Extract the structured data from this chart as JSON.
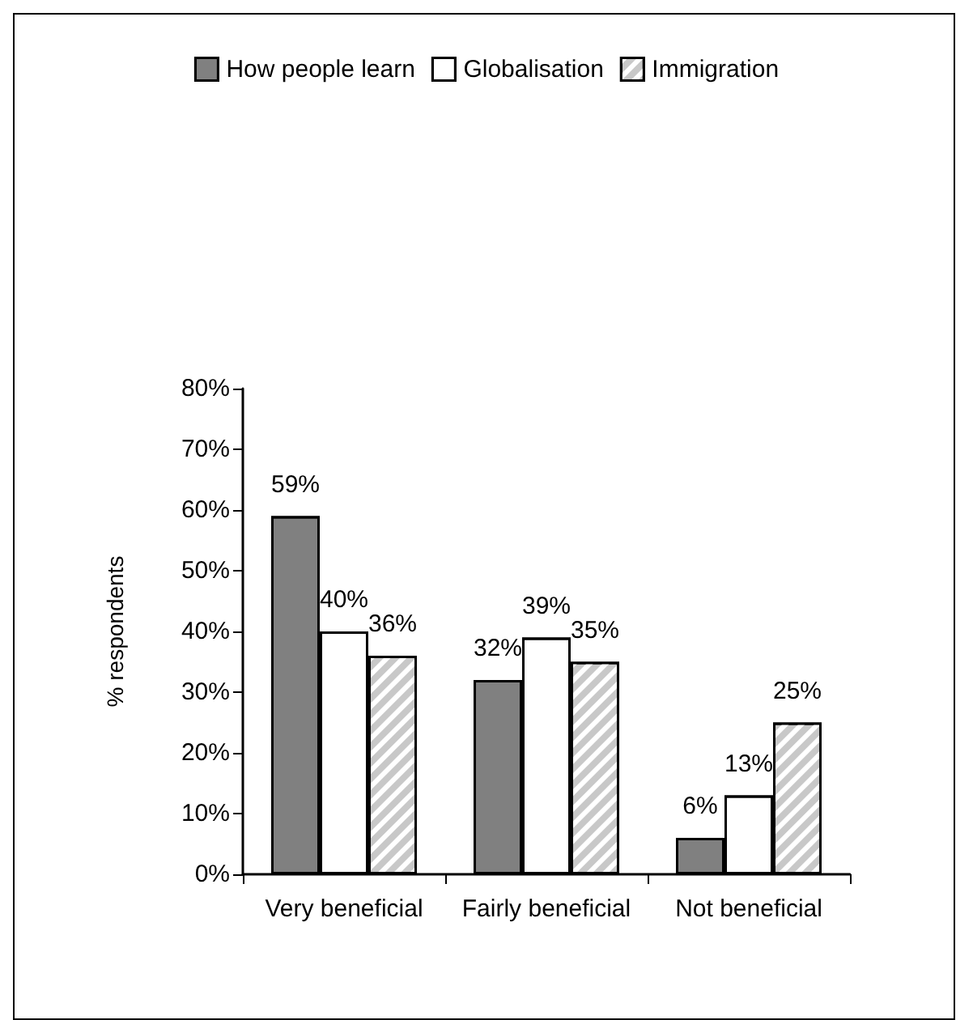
{
  "chart_data": {
    "type": "bar",
    "ylabel": "% respondents",
    "categories": [
      "Very beneficial",
      "Fairly beneficial",
      "Not beneficial"
    ],
    "series": [
      {
        "name": "How people learn",
        "color": "#808080",
        "values": [
          59,
          32,
          6
        ],
        "value_labels": [
          "59%",
          "32%",
          "6%"
        ]
      },
      {
        "name": "Globalisation",
        "color": "#ffffff",
        "values": [
          40,
          39,
          13
        ],
        "value_labels": [
          "40%",
          "39%",
          "13%"
        ]
      },
      {
        "name": "Immigration",
        "color": "#c8c8c8",
        "values": [
          36,
          35,
          25
        ],
        "value_labels": [
          "36%",
          "35%",
          "25%"
        ]
      }
    ],
    "ylim": [
      0,
      80
    ],
    "yticks": [
      {
        "value": 0,
        "label": "0%"
      },
      {
        "value": 10,
        "label": "10%"
      },
      {
        "value": 20,
        "label": "20%"
      },
      {
        "value": 30,
        "label": "30%"
      },
      {
        "value": 40,
        "label": "40%"
      },
      {
        "value": 50,
        "label": "50%"
      },
      {
        "value": 60,
        "label": "60%"
      },
      {
        "value": 70,
        "label": "70%"
      },
      {
        "value": 80,
        "label": "80%"
      }
    ],
    "grid": false,
    "legend": "top"
  }
}
